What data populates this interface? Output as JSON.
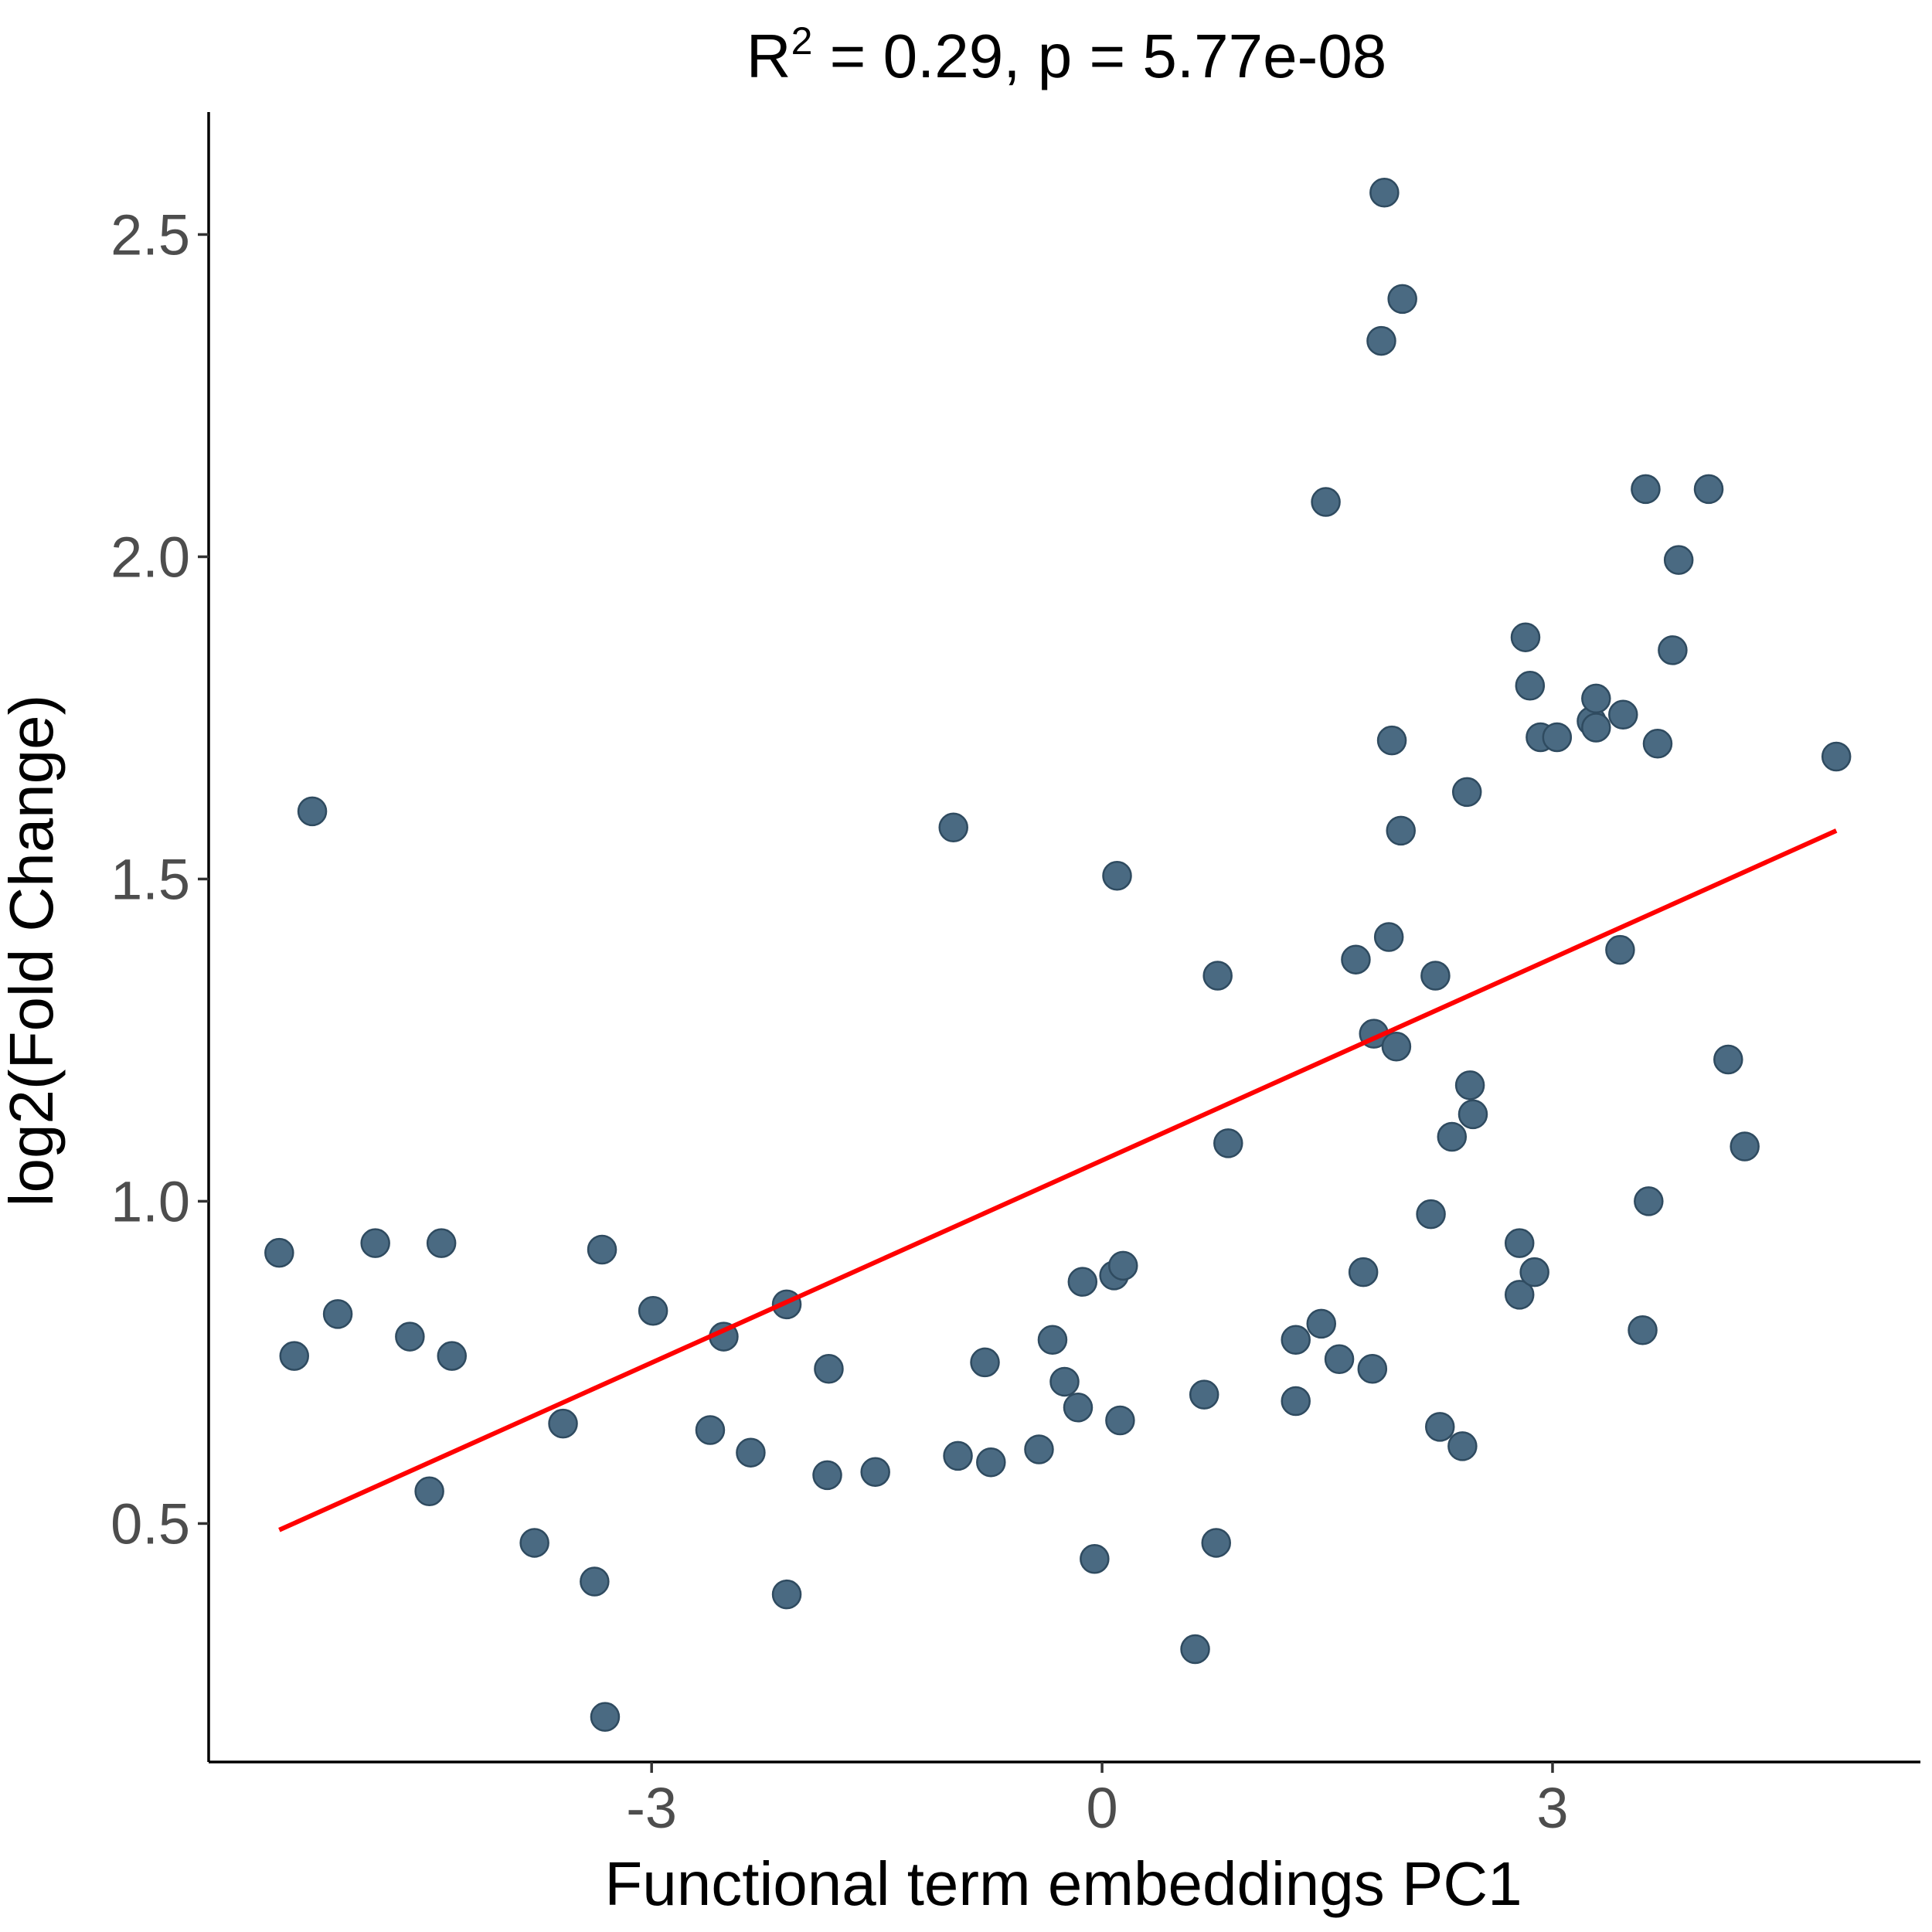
{
  "chart_data": {
    "type": "scatter",
    "title": {
      "prefix": "R",
      "superscript": "2",
      "rest": " = 0.29, p = 5.77e-08"
    },
    "xlabel": "Functional term embeddings PC1",
    "ylabel": "log2(Fold Change)",
    "xlim": [
      -5.95,
      5.45
    ],
    "ylim": [
      0.13,
      2.69
    ],
    "x_ticks": [
      -3,
      0,
      3
    ],
    "x_tick_labels": [
      "-3",
      "0",
      "3"
    ],
    "y_ticks": [
      0.5,
      1.0,
      1.5,
      2.0,
      2.5
    ],
    "y_tick_labels": [
      "0.5",
      "1.0",
      "1.5",
      "2.0",
      "2.5"
    ],
    "grid": false,
    "legend": "none",
    "point_color": "#4a6a82",
    "point_stroke": "#2f4b60",
    "trend_color": "#ff0000",
    "trend_line": {
      "x": [
        -5.48,
        4.89
      ],
      "y": [
        0.49,
        1.575
      ]
    },
    "points": [
      {
        "x": -5.48,
        "y": 0.92
      },
      {
        "x": -5.38,
        "y": 0.76
      },
      {
        "x": -5.26,
        "y": 1.605
      },
      {
        "x": -5.09,
        "y": 0.825
      },
      {
        "x": -4.84,
        "y": 0.935
      },
      {
        "x": -4.61,
        "y": 0.79
      },
      {
        "x": -4.48,
        "y": 0.55
      },
      {
        "x": -4.4,
        "y": 0.935
      },
      {
        "x": -4.33,
        "y": 0.76
      },
      {
        "x": -3.78,
        "y": 0.47
      },
      {
        "x": -3.59,
        "y": 0.655
      },
      {
        "x": -3.38,
        "y": 0.41
      },
      {
        "x": -3.33,
        "y": 0.925
      },
      {
        "x": -3.31,
        "y": 0.2
      },
      {
        "x": -2.99,
        "y": 0.83
      },
      {
        "x": -2.61,
        "y": 0.645
      },
      {
        "x": -2.52,
        "y": 0.79
      },
      {
        "x": -2.34,
        "y": 0.61
      },
      {
        "x": -2.1,
        "y": 0.84
      },
      {
        "x": -2.1,
        "y": 0.39
      },
      {
        "x": -1.82,
        "y": 0.74
      },
      {
        "x": -1.83,
        "y": 0.575
      },
      {
        "x": -1.51,
        "y": 0.58
      },
      {
        "x": -0.99,
        "y": 1.58
      },
      {
        "x": -0.96,
        "y": 0.605
      },
      {
        "x": -0.78,
        "y": 0.75
      },
      {
        "x": -0.74,
        "y": 0.595
      },
      {
        "x": -0.42,
        "y": 0.615
      },
      {
        "x": -0.33,
        "y": 0.785
      },
      {
        "x": -0.25,
        "y": 0.72
      },
      {
        "x": -0.16,
        "y": 0.68
      },
      {
        "x": -0.13,
        "y": 0.875
      },
      {
        "x": -0.05,
        "y": 0.445
      },
      {
        "x": 0.08,
        "y": 0.885
      },
      {
        "x": 0.1,
        "y": 1.505
      },
      {
        "x": 0.12,
        "y": 0.66
      },
      {
        "x": 0.14,
        "y": 0.9
      },
      {
        "x": 0.62,
        "y": 0.305
      },
      {
        "x": 0.68,
        "y": 0.7
      },
      {
        "x": 0.77,
        "y": 1.35
      },
      {
        "x": 0.76,
        "y": 0.47
      },
      {
        "x": 0.84,
        "y": 1.09
      },
      {
        "x": 1.29,
        "y": 0.785
      },
      {
        "x": 1.29,
        "y": 0.69
      },
      {
        "x": 1.46,
        "y": 0.81
      },
      {
        "x": 1.49,
        "y": 2.085
      },
      {
        "x": 1.58,
        "y": 0.755
      },
      {
        "x": 1.69,
        "y": 1.375
      },
      {
        "x": 1.74,
        "y": 0.89
      },
      {
        "x": 1.8,
        "y": 0.74
      },
      {
        "x": 1.81,
        "y": 1.26
      },
      {
        "x": 1.86,
        "y": 2.335
      },
      {
        "x": 1.88,
        "y": 2.565
      },
      {
        "x": 1.91,
        "y": 1.41
      },
      {
        "x": 1.93,
        "y": 1.715
      },
      {
        "x": 1.96,
        "y": 1.24
      },
      {
        "x": 1.99,
        "y": 1.575
      },
      {
        "x": 2.0,
        "y": 2.4
      },
      {
        "x": 2.19,
        "y": 0.98
      },
      {
        "x": 2.22,
        "y": 1.35
      },
      {
        "x": 2.25,
        "y": 0.65
      },
      {
        "x": 2.33,
        "y": 1.1
      },
      {
        "x": 2.4,
        "y": 0.62
      },
      {
        "x": 2.43,
        "y": 1.635
      },
      {
        "x": 2.45,
        "y": 1.18
      },
      {
        "x": 2.47,
        "y": 1.135
      },
      {
        "x": 2.78,
        "y": 0.935
      },
      {
        "x": 2.78,
        "y": 0.855
      },
      {
        "x": 2.82,
        "y": 1.875
      },
      {
        "x": 2.85,
        "y": 1.8
      },
      {
        "x": 2.88,
        "y": 0.89
      },
      {
        "x": 2.92,
        "y": 1.72
      },
      {
        "x": 3.03,
        "y": 1.72
      },
      {
        "x": 3.26,
        "y": 1.745
      },
      {
        "x": 3.29,
        "y": 1.78
      },
      {
        "x": 3.29,
        "y": 1.735
      },
      {
        "x": 3.45,
        "y": 1.39
      },
      {
        "x": 3.47,
        "y": 1.755
      },
      {
        "x": 3.6,
        "y": 0.8
      },
      {
        "x": 3.62,
        "y": 2.105
      },
      {
        "x": 3.64,
        "y": 1.0
      },
      {
        "x": 3.7,
        "y": 1.71
      },
      {
        "x": 3.8,
        "y": 1.855
      },
      {
        "x": 3.84,
        "y": 1.995
      },
      {
        "x": 4.04,
        "y": 2.105
      },
      {
        "x": 4.17,
        "y": 1.22
      },
      {
        "x": 4.28,
        "y": 1.085
      },
      {
        "x": 4.89,
        "y": 1.69
      }
    ]
  }
}
